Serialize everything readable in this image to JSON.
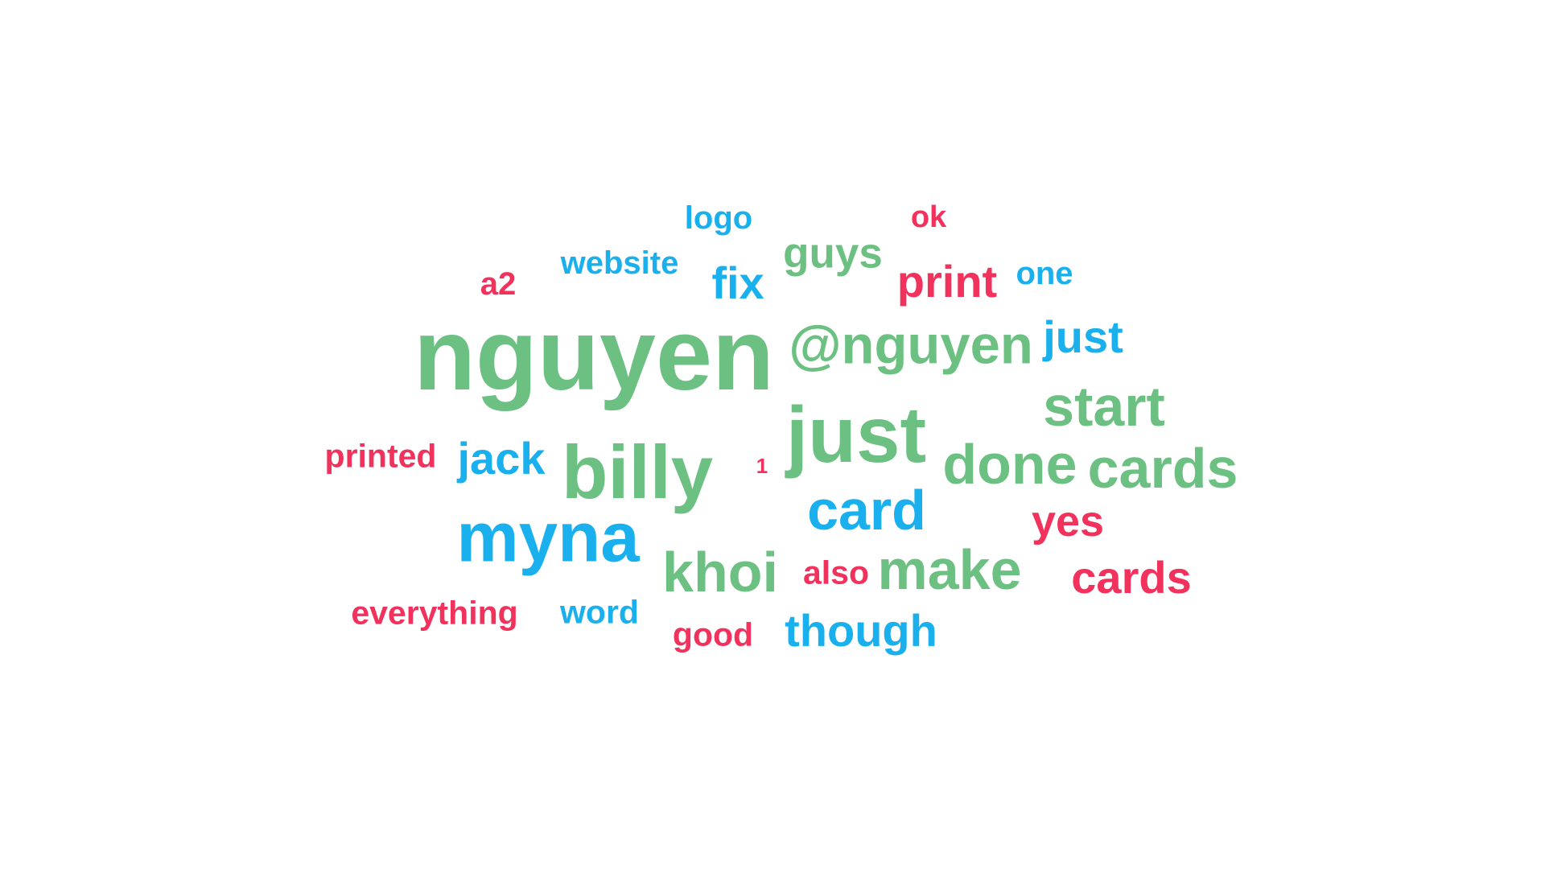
{
  "colors": {
    "green": "#6cc082",
    "blue": "#1ab0ee",
    "red": "#f0325d"
  },
  "words": {
    "logo": "logo",
    "ok": "ok",
    "website": "website",
    "guys": "guys",
    "a2": "a2",
    "fix": "fix",
    "print": "print",
    "one": "one",
    "nguyen": "nguyen",
    "at_nguyen": "@nguyen",
    "just_small": "just",
    "just_big": "just",
    "start": "start",
    "printed": "printed",
    "jack": "jack",
    "billy": "billy",
    "one_digit": "1",
    "done": "done",
    "cards_green": "cards",
    "card": "card",
    "myna": "myna",
    "yes": "yes",
    "khoi": "khoi",
    "also": "also",
    "make": "make",
    "cards_red": "cards",
    "everything": "everything",
    "word": "word",
    "good": "good",
    "though": "though"
  }
}
